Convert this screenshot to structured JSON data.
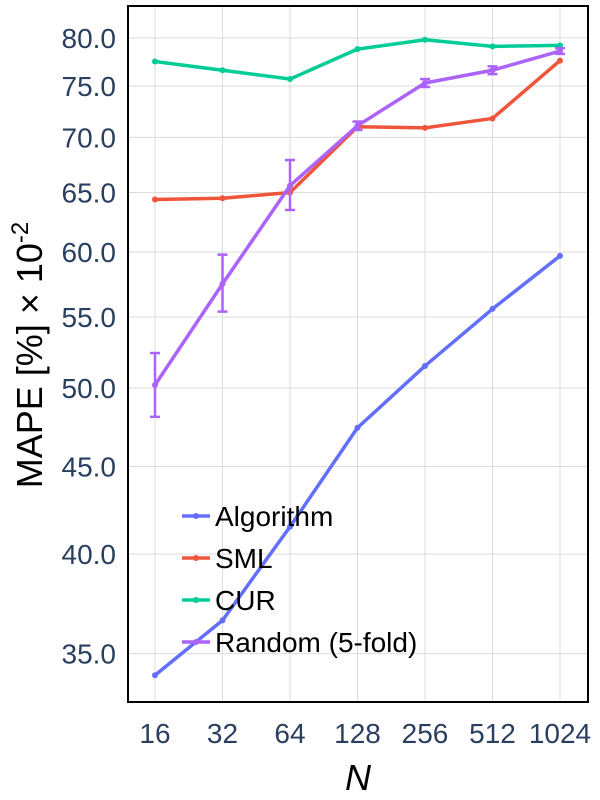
{
  "chart_data": {
    "type": "line",
    "x_scale": "log2",
    "y_scale": "log",
    "categories": [
      "16",
      "32",
      "64",
      "128",
      "256",
      "512",
      "1024"
    ],
    "x": [
      16,
      32,
      64,
      128,
      256,
      512,
      1024
    ],
    "xlabel": "N",
    "ylabel_main": "MAPE [%] × 10",
    "ylabel_exp": "-2",
    "ylim": [
      32.8,
      83.5
    ],
    "yticks": [
      35,
      40,
      45,
      50,
      55,
      60,
      65,
      70,
      75,
      80
    ],
    "ytick_labels": [
      "35.0",
      "40.0",
      "45.0",
      "50.0",
      "55.0",
      "60.0",
      "65.0",
      "70.0",
      "75.0",
      "80.0"
    ],
    "grid": true,
    "legend_position": "bottom-left",
    "series": [
      {
        "name": "Algorithm",
        "color": "#636efa",
        "values": [
          34.0,
          36.6,
          41.5,
          47.4,
          51.5,
          55.6,
          59.7
        ]
      },
      {
        "name": "SML",
        "color": "#ef553b",
        "values": [
          64.4,
          64.5,
          65.0,
          71.0,
          70.9,
          71.8,
          77.6
        ]
      },
      {
        "name": "CUR",
        "color": "#00cc96",
        "values": [
          77.5,
          76.6,
          75.7,
          78.8,
          79.8,
          79.1,
          79.2
        ]
      },
      {
        "name": "Random (5-fold)",
        "color": "#ab63fa",
        "values": [
          50.2,
          57.5,
          65.6,
          71.1,
          75.3,
          76.6,
          78.6
        ],
        "error_low": [
          48.1,
          55.4,
          63.5,
          70.7,
          74.9,
          76.2,
          78.3
        ],
        "error_high": [
          52.4,
          59.8,
          67.9,
          71.5,
          75.7,
          77.0,
          78.9
        ]
      }
    ]
  }
}
